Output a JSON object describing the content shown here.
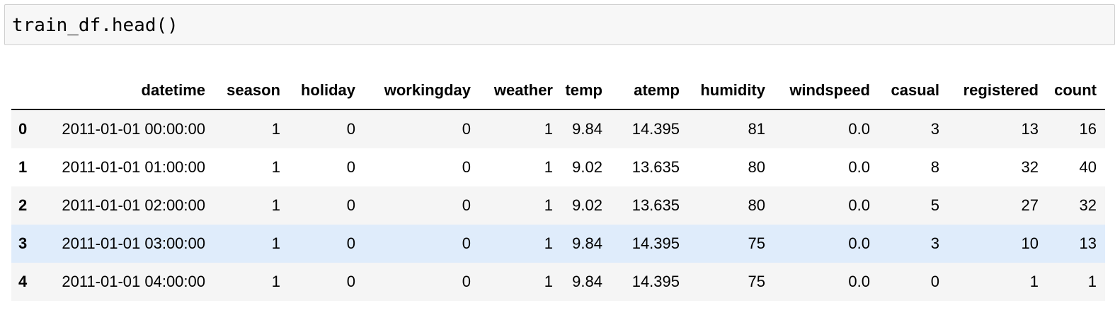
{
  "input_cell": {
    "code": "train_df.head()"
  },
  "output_table": {
    "columns": [
      "",
      "datetime",
      "season",
      "holiday",
      "workingday",
      "weather",
      "temp",
      "atemp",
      "humidity",
      "windspeed",
      "casual",
      "registered",
      "count"
    ],
    "rows": [
      {
        "index": "0",
        "cells": [
          "2011-01-01 00:00:00",
          "1",
          "0",
          "0",
          "1",
          "9.84",
          "14.395",
          "81",
          "0.0",
          "3",
          "13",
          "16"
        ]
      },
      {
        "index": "1",
        "cells": [
          "2011-01-01 01:00:00",
          "1",
          "0",
          "0",
          "1",
          "9.02",
          "13.635",
          "80",
          "0.0",
          "8",
          "32",
          "40"
        ]
      },
      {
        "index": "2",
        "cells": [
          "2011-01-01 02:00:00",
          "1",
          "0",
          "0",
          "1",
          "9.02",
          "13.635",
          "80",
          "0.0",
          "5",
          "27",
          "32"
        ]
      },
      {
        "index": "3",
        "cells": [
          "2011-01-01 03:00:00",
          "1",
          "0",
          "0",
          "1",
          "9.84",
          "14.395",
          "75",
          "0.0",
          "3",
          "10",
          "13"
        ]
      },
      {
        "index": "4",
        "cells": [
          "2011-01-01 04:00:00",
          "1",
          "0",
          "0",
          "1",
          "9.84",
          "14.395",
          "75",
          "0.0",
          "0",
          "1",
          "1"
        ]
      }
    ],
    "hovered_row": "3",
    "colors": {
      "stripe": "#f5f5f5",
      "hover": "#dfecfb",
      "header_rule": "#1a1a1a"
    }
  }
}
